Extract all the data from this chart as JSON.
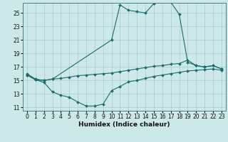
{
  "xlabel": "Humidex (Indice chaleur)",
  "background_color": "#cce8e8",
  "line_color": "#1a6b6b",
  "grid_color": "#aacccc",
  "xlim": [
    -0.5,
    23.5
  ],
  "ylim": [
    10.5,
    26.5
  ],
  "xticks": [
    0,
    1,
    2,
    3,
    4,
    5,
    6,
    7,
    8,
    9,
    10,
    11,
    12,
    13,
    14,
    15,
    16,
    17,
    18,
    19,
    20,
    21,
    22,
    23
  ],
  "yticks": [
    11,
    13,
    15,
    17,
    19,
    21,
    23,
    25
  ],
  "curve_max": {
    "x": [
      0,
      1,
      2,
      3,
      10,
      11,
      12,
      13,
      14,
      15,
      16,
      17,
      18,
      19,
      20,
      21,
      22,
      23
    ],
    "y": [
      16.0,
      15.2,
      15.0,
      15.2,
      21.0,
      26.2,
      25.4,
      25.2,
      25.0,
      26.4,
      26.7,
      26.6,
      24.8,
      17.7,
      17.2,
      17.0,
      17.2,
      16.7
    ]
  },
  "curve_mid": {
    "x": [
      0,
      1,
      2,
      3,
      4,
      5,
      6,
      7,
      8,
      9,
      10,
      11,
      12,
      13,
      14,
      15,
      16,
      17,
      18,
      19,
      20,
      21,
      22,
      23
    ],
    "y": [
      15.8,
      15.1,
      15.0,
      15.2,
      15.3,
      15.5,
      15.7,
      15.8,
      15.9,
      16.0,
      16.1,
      16.3,
      16.5,
      16.7,
      16.9,
      17.1,
      17.2,
      17.4,
      17.5,
      18.0,
      17.2,
      17.0,
      17.2,
      16.7
    ]
  },
  "curve_min": {
    "x": [
      0,
      1,
      2,
      3,
      4,
      5,
      6,
      7,
      8,
      9,
      10,
      11,
      12,
      13,
      14,
      15,
      16,
      17,
      18,
      19,
      20,
      21,
      22,
      23
    ],
    "y": [
      15.8,
      15.1,
      14.7,
      13.3,
      12.8,
      12.5,
      11.8,
      11.2,
      11.2,
      11.5,
      13.5,
      14.1,
      14.8,
      15.0,
      15.3,
      15.6,
      15.8,
      16.0,
      16.2,
      16.4,
      16.5,
      16.6,
      16.7,
      16.5
    ]
  },
  "tick_fontsize": 5.5,
  "xlabel_fontsize": 6.5,
  "lw": 0.8,
  "ms": 2.0
}
